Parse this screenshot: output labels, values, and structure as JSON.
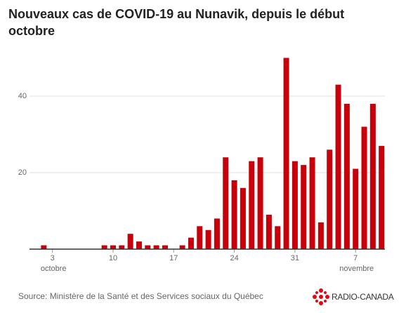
{
  "chart_data": {
    "type": "bar",
    "title": "Nouveaux cas de COVID-19 au Nunavik, depuis le début octobre",
    "categories": [
      null,
      null,
      "3 octobre",
      null,
      null,
      null,
      null,
      null,
      null,
      "10",
      null,
      null,
      null,
      null,
      null,
      null,
      "17",
      null,
      null,
      null,
      null,
      null,
      null,
      "24",
      null,
      null,
      null,
      null,
      null,
      null,
      "31",
      null,
      null,
      null,
      null,
      null,
      null,
      "7 novembre",
      null,
      null,
      null
    ],
    "values": [
      0,
      1,
      0,
      0,
      0,
      0,
      0,
      0,
      1,
      1,
      1,
      4,
      2,
      1,
      1,
      1,
      0,
      1,
      3,
      6,
      5,
      8,
      24,
      18,
      16,
      23,
      24,
      9,
      6,
      50,
      23,
      22,
      24,
      7,
      26,
      43,
      38,
      21,
      32,
      38,
      27
    ],
    "color": "#c8000a",
    "ylim": [
      0,
      52
    ],
    "yticks": [
      20,
      40
    ],
    "grid": true,
    "source": "Source: Ministère de la Santé et des Services sociaux du Québec",
    "logo": "RADIO-CANADA"
  }
}
